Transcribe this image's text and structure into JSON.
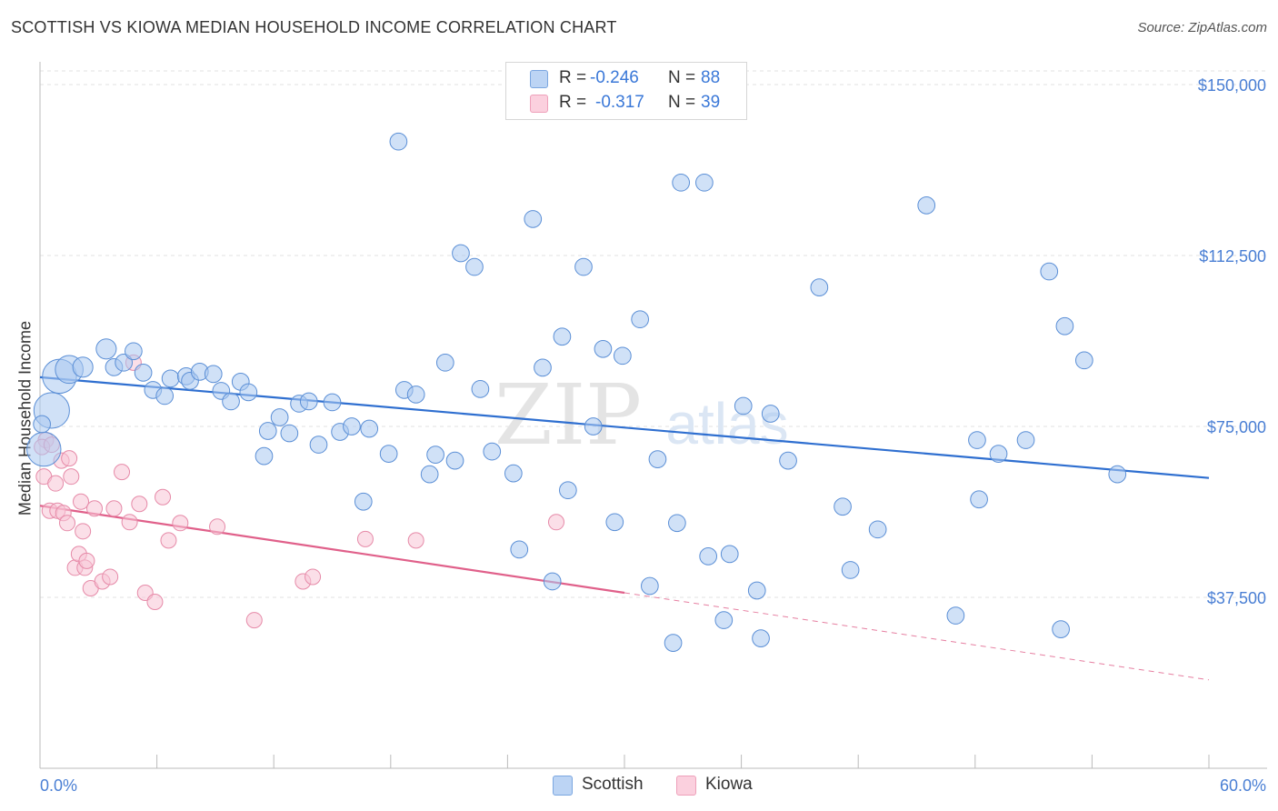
{
  "title": "SCOTTISH VS KIOWA MEDIAN HOUSEHOLD INCOME CORRELATION CHART",
  "source": "Source: ZipAtlas.com",
  "stats": [
    {
      "r_label": "R =",
      "r_value": "-0.246",
      "n_label": "N =",
      "n_value": "88",
      "color": "#a9c8f0"
    },
    {
      "r_label": "R =",
      "r_value": "-0.317",
      "n_label": "N =",
      "n_value": "39",
      "color": "#f6b8cc"
    }
  ],
  "legend": [
    {
      "label": "Scottish",
      "color": "#a9c8f0"
    },
    {
      "label": "Kiowa",
      "color": "#f6b8cc"
    }
  ],
  "colors": {
    "scottish_fill": "#a9c8f0",
    "scottish_stroke": "#5b8fd6",
    "scottish_line": "#2f6fd0",
    "kiowa_fill": "#f8c4d5",
    "kiowa_stroke": "#e68aa8",
    "kiowa_line": "#e0608a",
    "tick_text": "#4a7fd4"
  },
  "chart_data": {
    "type": "scatter",
    "title": "SCOTTISH VS KIOWA MEDIAN HOUSEHOLD INCOME CORRELATION CHART",
    "xlabel": "",
    "ylabel": "Median Household Income",
    "xlim": [
      0,
      60
    ],
    "ylim": [
      0,
      153000
    ],
    "x_tick_labels": [
      "0.0%",
      "60.0%"
    ],
    "y_ticks": [
      37500,
      75000,
      112500,
      150000
    ],
    "y_tick_labels": [
      "$37,500",
      "$75,000",
      "$112,500",
      "$150,000"
    ],
    "grid": true,
    "watermark": "ZIPatlas",
    "series": [
      {
        "name": "Scottish",
        "trend": {
          "x": [
            0,
            60
          ],
          "y": [
            85800,
            63700
          ]
        },
        "points": [
          [
            0.2,
            70000,
            2.2
          ],
          [
            0.6,
            78500,
            2.3
          ],
          [
            1.0,
            86000,
            2.2
          ],
          [
            1.5,
            87500,
            1.8
          ],
          [
            2.2,
            88000,
            1.3
          ],
          [
            3.4,
            92000,
            1.3
          ],
          [
            3.8,
            88000,
            1.1
          ],
          [
            4.3,
            89000,
            1.1
          ],
          [
            4.8,
            91500,
            1.1
          ],
          [
            5.3,
            86800,
            1.1
          ],
          [
            5.8,
            83000,
            1.1
          ],
          [
            6.4,
            81700,
            1.1
          ],
          [
            6.7,
            85500,
            1.1
          ],
          [
            7.5,
            86000,
            1.1
          ],
          [
            7.7,
            85000,
            1.1
          ],
          [
            8.2,
            87000,
            1.1
          ],
          [
            8.9,
            86500,
            1.1
          ],
          [
            9.3,
            82800,
            1.1
          ],
          [
            9.8,
            80500,
            1.1
          ],
          [
            10.3,
            84800,
            1.1
          ],
          [
            10.7,
            82500,
            1.1
          ],
          [
            11.5,
            68500,
            1.1
          ],
          [
            11.7,
            74000,
            1.1
          ],
          [
            12.3,
            77000,
            1.1
          ],
          [
            12.8,
            73500,
            1.1
          ],
          [
            13.3,
            80000,
            1.1
          ],
          [
            13.8,
            80500,
            1.1
          ],
          [
            14.3,
            71000,
            1.1
          ],
          [
            15.0,
            80300,
            1.1
          ],
          [
            15.4,
            73800,
            1.1
          ],
          [
            16.0,
            75000,
            1.1
          ],
          [
            16.6,
            58500,
            1.1
          ],
          [
            16.9,
            74500,
            1.1
          ],
          [
            17.9,
            69000,
            1.1
          ],
          [
            18.4,
            137500,
            1.1
          ],
          [
            18.7,
            83000,
            1.1
          ],
          [
            19.3,
            82000,
            1.1
          ],
          [
            20.0,
            64500,
            1.1
          ],
          [
            20.3,
            68800,
            1.1
          ],
          [
            20.8,
            89000,
            1.1
          ],
          [
            21.3,
            67500,
            1.1
          ],
          [
            21.6,
            113000,
            1.1
          ],
          [
            22.3,
            110000,
            1.1
          ],
          [
            22.6,
            83200,
            1.1
          ],
          [
            23.2,
            69500,
            1.1
          ],
          [
            24.3,
            64700,
            1.1
          ],
          [
            24.6,
            48000,
            1.1
          ],
          [
            25.3,
            120500,
            1.1
          ],
          [
            25.8,
            87900,
            1.1
          ],
          [
            26.3,
            41000,
            1.1
          ],
          [
            26.8,
            94700,
            1.1
          ],
          [
            27.1,
            61000,
            1.1
          ],
          [
            27.9,
            110000,
            1.1
          ],
          [
            28.4,
            75000,
            1.1
          ],
          [
            28.9,
            92000,
            1.1
          ],
          [
            29.5,
            54000,
            1.1
          ],
          [
            29.9,
            90500,
            1.1
          ],
          [
            30.8,
            98500,
            1.1
          ],
          [
            31.3,
            40000,
            1.1
          ],
          [
            31.7,
            67800,
            1.1
          ],
          [
            32.5,
            27500,
            1.1
          ],
          [
            32.7,
            53800,
            1.1
          ],
          [
            32.9,
            128500,
            1.1
          ],
          [
            34.1,
            128500,
            1.1
          ],
          [
            34.3,
            46500,
            1.1
          ],
          [
            35.1,
            32500,
            1.1
          ],
          [
            35.4,
            47000,
            1.1
          ],
          [
            36.1,
            79500,
            1.1
          ],
          [
            36.8,
            39000,
            1.1
          ],
          [
            37.0,
            28500,
            1.1
          ],
          [
            37.5,
            77800,
            1.1
          ],
          [
            38.4,
            67500,
            1.1
          ],
          [
            40.0,
            105500,
            1.1
          ],
          [
            41.2,
            57400,
            1.1
          ],
          [
            41.6,
            43500,
            1.1
          ],
          [
            43.0,
            52400,
            1.1
          ],
          [
            45.5,
            123500,
            1.1
          ],
          [
            47.0,
            33500,
            1.1
          ],
          [
            48.1,
            72000,
            1.1
          ],
          [
            48.2,
            59000,
            1.1
          ],
          [
            49.2,
            69000,
            1.1
          ],
          [
            50.6,
            72000,
            1.1
          ],
          [
            51.8,
            109000,
            1.1
          ],
          [
            52.4,
            30500,
            1.1
          ],
          [
            52.6,
            97000,
            1.1
          ],
          [
            53.6,
            89500,
            1.1
          ],
          [
            55.3,
            64500,
            1.1
          ],
          [
            0.1,
            75500,
            1.1
          ]
        ]
      },
      {
        "name": "Kiowa",
        "trend": {
          "x": [
            0,
            30
          ],
          "y": [
            57600,
            38500
          ]
        },
        "trend_extension": {
          "x": [
            30,
            60
          ],
          "y": [
            38500,
            19400
          ]
        },
        "points": [
          [
            0.2,
            64000
          ],
          [
            0.3,
            72000
          ],
          [
            0.5,
            56500
          ],
          [
            0.8,
            62500
          ],
          [
            0.9,
            56500
          ],
          [
            1.1,
            67500
          ],
          [
            1.2,
            56000
          ],
          [
            1.4,
            53800
          ],
          [
            1.5,
            68000
          ],
          [
            1.6,
            64000
          ],
          [
            1.8,
            44000
          ],
          [
            2.0,
            47000
          ],
          [
            2.1,
            58500
          ],
          [
            2.2,
            52000
          ],
          [
            2.3,
            44000
          ],
          [
            2.4,
            45500
          ],
          [
            2.6,
            39500
          ],
          [
            2.8,
            57000
          ],
          [
            3.2,
            41000
          ],
          [
            3.6,
            42000
          ],
          [
            3.8,
            57000
          ],
          [
            4.2,
            65000
          ],
          [
            4.6,
            54000
          ],
          [
            4.8,
            89000
          ],
          [
            5.1,
            58000
          ],
          [
            5.4,
            38500
          ],
          [
            5.9,
            36500
          ],
          [
            6.3,
            59500
          ],
          [
            6.6,
            50000
          ],
          [
            7.2,
            53800
          ],
          [
            9.1,
            53000
          ],
          [
            11.0,
            32500
          ],
          [
            13.5,
            41000
          ],
          [
            14.0,
            42000
          ],
          [
            16.7,
            50300
          ],
          [
            19.3,
            50000
          ],
          [
            26.5,
            54000
          ],
          [
            0.1,
            70500
          ],
          [
            0.6,
            71000
          ]
        ]
      }
    ]
  }
}
